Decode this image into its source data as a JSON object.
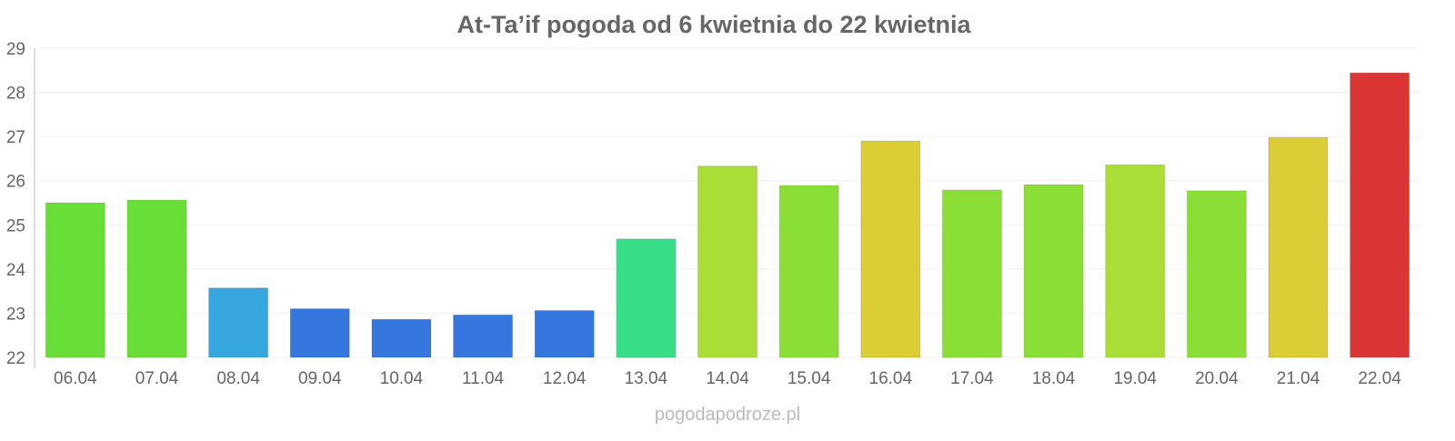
{
  "chart_data": {
    "type": "bar",
    "title": "At-Ta’if pogoda od 6 kwietnia do 22 kwietnia",
    "xlabel": "",
    "ylabel": "",
    "ylim": [
      22,
      29
    ],
    "yticks": [
      "22",
      "23",
      "24",
      "25",
      "26",
      "27",
      "28",
      "29"
    ],
    "grid": true,
    "categories": [
      "06.04",
      "07.04",
      "08.04",
      "09.04",
      "10.04",
      "11.04",
      "12.04",
      "13.04",
      "14.04",
      "15.04",
      "16.04",
      "17.04",
      "18.04",
      "19.04",
      "20.04",
      "21.04",
      "22.04"
    ],
    "values": [
      25.5,
      25.56,
      23.57,
      23.1,
      22.86,
      22.96,
      23.06,
      24.68,
      26.33,
      25.89,
      26.9,
      25.79,
      25.91,
      26.36,
      25.77,
      26.98,
      28.44
    ],
    "colors": [
      "#6ade38",
      "#6ade38",
      "#36a6dc",
      "#3577de",
      "#3577de",
      "#3577de",
      "#3577de",
      "#38dd88",
      "#aadd35",
      "#8ade35",
      "#dbcd35",
      "#8ade35",
      "#8ade35",
      "#aadd35",
      "#8ade35",
      "#dbcd35",
      "#dc3535"
    ]
  },
  "watermark": "pogodapodroze.pl"
}
